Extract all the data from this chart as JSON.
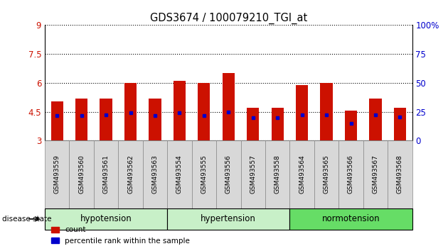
{
  "title": "GDS3674 / 100079210_TGI_at",
  "samples": [
    "GSM493559",
    "GSM493560",
    "GSM493561",
    "GSM493562",
    "GSM493563",
    "GSM493554",
    "GSM493555",
    "GSM493556",
    "GSM493557",
    "GSM493558",
    "GSM493564",
    "GSM493565",
    "GSM493566",
    "GSM493567",
    "GSM493568"
  ],
  "red_values": [
    5.05,
    5.2,
    5.18,
    6.0,
    5.18,
    6.1,
    6.0,
    6.5,
    4.7,
    4.72,
    5.9,
    6.0,
    4.55,
    5.18,
    4.7
  ],
  "blue_values": [
    4.3,
    4.3,
    4.35,
    4.45,
    4.3,
    4.45,
    4.3,
    4.5,
    4.2,
    4.2,
    4.35,
    4.35,
    3.9,
    4.35,
    4.22
  ],
  "ymin": 3,
  "ymax": 9,
  "yticks": [
    3,
    4.5,
    6,
    7.5,
    9
  ],
  "ytick_labels": [
    "3",
    "4.5",
    "6",
    "7.5",
    "9"
  ],
  "right_yticks": [
    0,
    25,
    50,
    75,
    100
  ],
  "right_ytick_labels": [
    "0",
    "25",
    "50",
    "75",
    "100%"
  ],
  "group_labels": [
    "hypotension",
    "hypertension",
    "normotension"
  ],
  "group_ranges": [
    [
      0,
      5
    ],
    [
      5,
      10
    ],
    [
      10,
      15
    ]
  ],
  "group_colors": [
    "#c8f0c8",
    "#c8f0c8",
    "#66dd66"
  ],
  "bar_color": "#cc1100",
  "dot_color": "#0000cc",
  "tick_color_left": "#cc1100",
  "tick_color_right": "#0000cc",
  "bar_width": 0.5,
  "legend_items": [
    "count",
    "percentile rank within the sample"
  ],
  "xtick_bg_color": "#d8d8d8"
}
